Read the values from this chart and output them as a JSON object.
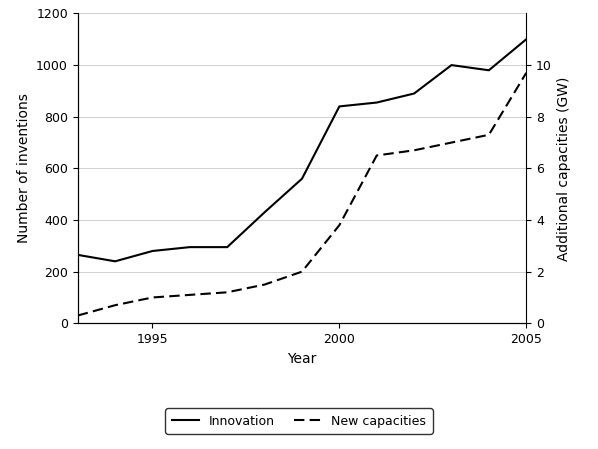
{
  "years_innovation": [
    1993,
    1994,
    1995,
    1996,
    1997,
    1998,
    1999,
    2000,
    2001,
    2002,
    2003,
    2004,
    2005
  ],
  "innovation": [
    265,
    240,
    280,
    295,
    295,
    430,
    560,
    840,
    855,
    890,
    1000,
    980,
    1100
  ],
  "years_capacity": [
    1993,
    1994,
    1995,
    1996,
    1997,
    1998,
    1999,
    2000,
    2001,
    2002,
    2003,
    2004,
    2005
  ],
  "new_capacities": [
    0.3,
    0.7,
    1.0,
    1.1,
    1.2,
    1.5,
    2.0,
    3.8,
    6.5,
    6.7,
    7.0,
    7.3,
    9.7
  ],
  "xlabel": "Year",
  "ylabel_left": "Number of inventions",
  "ylabel_right": "Additional capacities (GW)",
  "xlim": [
    1993,
    2005
  ],
  "ylim_left": [
    0,
    1200
  ],
  "ylim_right": [
    0,
    12
  ],
  "yticks_left": [
    0,
    200,
    400,
    600,
    800,
    1000,
    1200
  ],
  "yticks_right": [
    0,
    2,
    4,
    6,
    8,
    10
  ],
  "xticks": [
    1995,
    2000,
    2005
  ],
  "legend_labels": [
    "Innovation",
    "New capacities"
  ],
  "line_color": "#000000",
  "bg_color": "#ffffff",
  "grid_color": "#d0d0d0"
}
